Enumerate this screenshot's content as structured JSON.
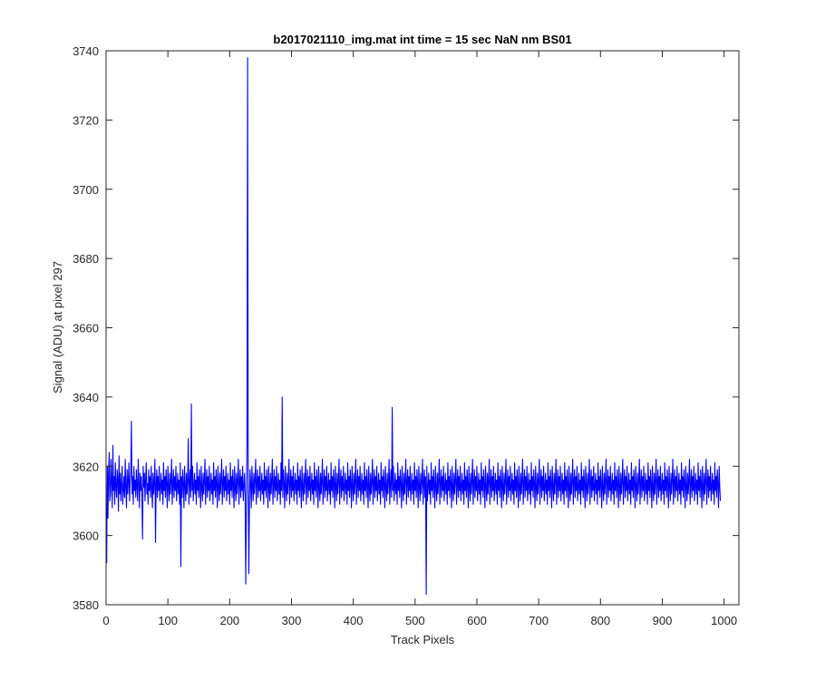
{
  "chart_data": {
    "type": "line",
    "title": "b2017021110_img.mat int time = 15 sec  NaN nm BS01",
    "xlabel": "Track Pixels",
    "ylabel": "Signal (ADU) at pixel 297",
    "xlim": [
      0,
      1024
    ],
    "ylim": [
      3580,
      3740
    ],
    "xticks": [
      0,
      100,
      200,
      300,
      400,
      500,
      600,
      700,
      800,
      900,
      1000
    ],
    "xtick_labels": [
      "0",
      "100",
      "200",
      "300",
      "400",
      "500",
      "600",
      "700",
      "800",
      "900",
      "1000"
    ],
    "yticks": [
      3580,
      3600,
      3620,
      3640,
      3660,
      3680,
      3700,
      3720,
      3740
    ],
    "ytick_labels": [
      "3580",
      "3600",
      "3620",
      "3640",
      "3660",
      "3680",
      "3700",
      "3720",
      "3740"
    ],
    "grid": false,
    "line_color": "#0000ff",
    "series": [
      {
        "x_start": 1,
        "x_step": 1,
        "values": [
          3592,
          3620,
          3605,
          3618,
          3624,
          3610,
          3612,
          3622,
          3615,
          3608,
          3626,
          3613,
          3617,
          3609,
          3621,
          3614,
          3611,
          3619,
          3616,
          3607,
          3623,
          3612,
          3618,
          3610,
          3615,
          3620,
          3609,
          3613,
          3617,
          3611,
          3622,
          3614,
          3608,
          3619,
          3612,
          3616,
          3621,
          3610,
          3615,
          3618,
          3633,
          3612,
          3617,
          3609,
          3620,
          3613,
          3616,
          3611,
          3619,
          3614,
          3610,
          3622,
          3615,
          3608,
          3618,
          3613,
          3617,
          3611,
          3599,
          3620,
          3614,
          3618,
          3610,
          3616,
          3621,
          3612,
          3615,
          3609,
          3619,
          3613,
          3617,
          3611,
          3620,
          3614,
          3608,
          3618,
          3612,
          3616,
          3622,
          3598,
          3615,
          3619,
          3611,
          3617,
          3613,
          3620,
          3610,
          3614,
          3618,
          3612,
          3616,
          3609,
          3621,
          3613,
          3617,
          3611,
          3619,
          3615,
          3608,
          3620,
          3614,
          3610,
          3618,
          3612,
          3616,
          3622,
          3609,
          3615,
          3619,
          3611,
          3617,
          3613,
          3620,
          3610,
          3614,
          3618,
          3612,
          3616,
          3609,
          3621,
          3591,
          3617,
          3611,
          3619,
          3615,
          3608,
          3620,
          3614,
          3610,
          3618,
          3612,
          3616,
          3628,
          3609,
          3615,
          3619,
          3611,
          3638,
          3613,
          3620,
          3610,
          3614,
          3618,
          3612,
          3616,
          3609,
          3621,
          3613,
          3617,
          3611,
          3619,
          3615,
          3608,
          3620,
          3614,
          3610,
          3618,
          3612,
          3616,
          3622,
          3609,
          3615,
          3619,
          3611,
          3617,
          3613,
          3620,
          3610,
          3614,
          3618,
          3612,
          3616,
          3609,
          3621,
          3613,
          3617,
          3611,
          3619,
          3615,
          3608,
          3620,
          3614,
          3610,
          3618,
          3612,
          3616,
          3622,
          3609,
          3615,
          3619,
          3611,
          3617,
          3613,
          3620,
          3610,
          3614,
          3618,
          3612,
          3616,
          3609,
          3621,
          3613,
          3617,
          3611,
          3619,
          3615,
          3608,
          3620,
          3614,
          3610,
          3618,
          3612,
          3616,
          3622,
          3609,
          3615,
          3619,
          3611,
          3617,
          3613,
          3620,
          3610,
          3614,
          3618,
          3612,
          3586,
          3609,
          3627,
          3738,
          3613,
          3589,
          3611,
          3619,
          3615,
          3608,
          3620,
          3614,
          3610,
          3618,
          3612,
          3616,
          3622,
          3609,
          3615,
          3619,
          3611,
          3617,
          3613,
          3620,
          3610,
          3614,
          3618,
          3612,
          3616,
          3609,
          3621,
          3613,
          3617,
          3611,
          3619,
          3615,
          3608,
          3620,
          3614,
          3610,
          3618,
          3612,
          3616,
          3622,
          3609,
          3615,
          3619,
          3611,
          3617,
          3613,
          3620,
          3610,
          3614,
          3618,
          3612,
          3616,
          3609,
          3621,
          3613,
          3640,
          3611,
          3619,
          3615,
          3608,
          3620,
          3614,
          3610,
          3618,
          3612,
          3616,
          3622,
          3609,
          3615,
          3619,
          3611,
          3617,
          3613,
          3620,
          3610,
          3614,
          3618,
          3612,
          3616,
          3609,
          3621,
          3613,
          3617,
          3611,
          3619,
          3615,
          3608,
          3620,
          3614,
          3610,
          3618,
          3612,
          3616,
          3622,
          3609,
          3615,
          3619,
          3611,
          3617,
          3613,
          3620,
          3610,
          3614,
          3618,
          3612,
          3616,
          3609,
          3621,
          3613,
          3617,
          3611,
          3619,
          3615,
          3608,
          3620,
          3614,
          3610,
          3618,
          3612,
          3616,
          3622,
          3609,
          3615,
          3619,
          3611,
          3617,
          3613,
          3620,
          3610,
          3614,
          3618,
          3612,
          3616,
          3609,
          3621,
          3613,
          3617,
          3611,
          3619,
          3615,
          3608,
          3620,
          3614,
          3610,
          3618,
          3612,
          3616,
          3622,
          3609,
          3615,
          3619,
          3611,
          3617,
          3613,
          3620,
          3610,
          3614,
          3618,
          3612,
          3616,
          3609,
          3621,
          3613,
          3617,
          3611,
          3619,
          3615,
          3608,
          3620,
          3614,
          3610,
          3618,
          3612,
          3616,
          3622,
          3609,
          3615,
          3619,
          3611,
          3617,
          3613,
          3620,
          3610,
          3614,
          3618,
          3612,
          3616,
          3609,
          3621,
          3613,
          3617,
          3611,
          3619,
          3615,
          3608,
          3620,
          3614,
          3610,
          3618,
          3612,
          3616,
          3622,
          3609,
          3615,
          3619,
          3611,
          3617,
          3613,
          3620,
          3610,
          3614,
          3618,
          3612,
          3616,
          3609,
          3621,
          3613,
          3617,
          3611,
          3619,
          3615,
          3608,
          3620,
          3614,
          3610,
          3618,
          3612,
          3616,
          3622,
          3609,
          3615,
          3619,
          3611,
          3637,
          3613,
          3620,
          3610,
          3614,
          3618,
          3612,
          3616,
          3609,
          3621,
          3613,
          3617,
          3611,
          3619,
          3615,
          3608,
          3620,
          3614,
          3610,
          3618,
          3612,
          3616,
          3622,
          3609,
          3615,
          3619,
          3611,
          3617,
          3613,
          3620,
          3610,
          3614,
          3618,
          3612,
          3616,
          3609,
          3621,
          3613,
          3617,
          3611,
          3619,
          3615,
          3608,
          3620,
          3614,
          3610,
          3618,
          3612,
          3616,
          3622,
          3609,
          3615,
          3619,
          3611,
          3617,
          3583,
          3620,
          3610,
          3614,
          3618,
          3612,
          3616,
          3609,
          3621,
          3613,
          3617,
          3611,
          3619,
          3615,
          3608,
          3620,
          3614,
          3610,
          3618,
          3612,
          3616,
          3622,
          3609,
          3615,
          3619,
          3611,
          3617,
          3613,
          3620,
          3610,
          3614,
          3618,
          3612,
          3616,
          3609,
          3621,
          3613,
          3617,
          3611,
          3619,
          3615,
          3608,
          3620,
          3614,
          3610,
          3618,
          3612,
          3616,
          3622,
          3609,
          3615,
          3619,
          3611,
          3617,
          3613,
          3620,
          3610,
          3614,
          3618,
          3612,
          3616,
          3609,
          3621,
          3613,
          3617,
          3611,
          3619,
          3615,
          3608,
          3620,
          3614,
          3610,
          3618,
          3612,
          3616,
          3622,
          3609,
          3615,
          3619,
          3611,
          3617,
          3613,
          3620,
          3610,
          3614,
          3618,
          3612,
          3616,
          3609,
          3621,
          3613,
          3617,
          3611,
          3619,
          3615,
          3608,
          3620,
          3614,
          3610,
          3618,
          3612,
          3616,
          3622,
          3609,
          3615,
          3619,
          3611,
          3617,
          3613,
          3620,
          3610,
          3614,
          3618,
          3612,
          3616,
          3609,
          3621,
          3613,
          3617,
          3611,
          3619,
          3615,
          3608,
          3620,
          3614,
          3610,
          3618,
          3612,
          3616,
          3622,
          3609,
          3615,
          3619,
          3611,
          3617,
          3613,
          3620,
          3610,
          3614,
          3618,
          3612,
          3616,
          3609,
          3621,
          3613,
          3617,
          3611,
          3619,
          3615,
          3608,
          3620,
          3614,
          3610,
          3618,
          3612,
          3616,
          3622,
          3609,
          3615,
          3619,
          3611,
          3617,
          3613,
          3620,
          3610,
          3614,
          3618,
          3612,
          3616,
          3609,
          3621,
          3613,
          3617,
          3611,
          3619,
          3615,
          3608,
          3620,
          3614,
          3610,
          3618,
          3612,
          3616,
          3622,
          3609,
          3615,
          3619,
          3611,
          3617,
          3613,
          3620,
          3610,
          3614,
          3618,
          3612,
          3616,
          3609,
          3621,
          3613,
          3617,
          3611,
          3619,
          3615,
          3608,
          3620,
          3614,
          3610,
          3618,
          3612,
          3616,
          3622,
          3609,
          3615,
          3619,
          3611,
          3617,
          3613,
          3620,
          3610,
          3614,
          3618,
          3612,
          3616,
          3609,
          3621,
          3613,
          3617,
          3611,
          3619,
          3615,
          3608,
          3620,
          3614,
          3610,
          3618,
          3612,
          3616,
          3622,
          3609,
          3615,
          3619,
          3611,
          3617,
          3613,
          3620,
          3610,
          3614,
          3618,
          3612,
          3616,
          3609,
          3621,
          3613,
          3617,
          3611,
          3619,
          3615,
          3608,
          3620,
          3614,
          3610,
          3618,
          3612,
          3616,
          3622,
          3609,
          3615,
          3619,
          3611,
          3617,
          3613,
          3620,
          3610,
          3614,
          3618,
          3612,
          3616,
          3609,
          3621,
          3613,
          3617,
          3611,
          3619,
          3615,
          3608,
          3620,
          3614,
          3610,
          3618,
          3612,
          3616,
          3622,
          3609,
          3615,
          3619,
          3611,
          3617,
          3613,
          3620,
          3610,
          3614,
          3618,
          3612,
          3616,
          3609,
          3621,
          3613,
          3617,
          3611,
          3619,
          3615,
          3608,
          3620,
          3614,
          3610,
          3618,
          3612,
          3616,
          3622,
          3609,
          3615,
          3619,
          3611,
          3617,
          3613,
          3620,
          3610,
          3614,
          3618,
          3612,
          3616,
          3609,
          3621,
          3613,
          3617,
          3611,
          3619,
          3615,
          3608,
          3620,
          3614,
          3610,
          3618,
          3612,
          3616,
          3622,
          3609,
          3615,
          3619,
          3611,
          3617,
          3613,
          3620,
          3610,
          3614,
          3618,
          3612,
          3616,
          3609,
          3621,
          3613,
          3617,
          3611,
          3619,
          3615,
          3608,
          3620,
          3614,
          3610,
          3618,
          3612,
          3616,
          3622,
          3609,
          3615,
          3619,
          3611,
          3617,
          3613,
          3620,
          3610,
          3614,
          3618,
          3612,
          3616,
          3609,
          3621,
          3613,
          3617,
          3611,
          3619,
          3615,
          3608,
          3620,
          3614,
          3610,
          3618,
          3612,
          3616,
          3622,
          3609,
          3615,
          3619,
          3611,
          3617,
          3613,
          3620,
          3610,
          3614,
          3618,
          3612,
          3616,
          3609,
          3621,
          3613,
          3617,
          3611,
          3619,
          3615,
          3608,
          3620,
          3614,
          3610,
          3618,
          3612,
          3616,
          3622,
          3609,
          3615,
          3619,
          3611,
          3617,
          3613,
          3620,
          3610,
          3614,
          3618,
          3612,
          3616,
          3609,
          3621,
          3613,
          3617,
          3611,
          3619,
          3615,
          3608,
          3620,
          3614,
          3610,
          3618,
          3612,
          3616,
          3622,
          3609,
          3615,
          3619,
          3611,
          3617,
          3613,
          3620,
          3610,
          3614,
          3618,
          3612,
          3616,
          3609,
          3621,
          3613,
          3617,
          3611,
          3619,
          3615,
          3608,
          3620,
          3614,
          3610
        ]
      }
    ]
  }
}
